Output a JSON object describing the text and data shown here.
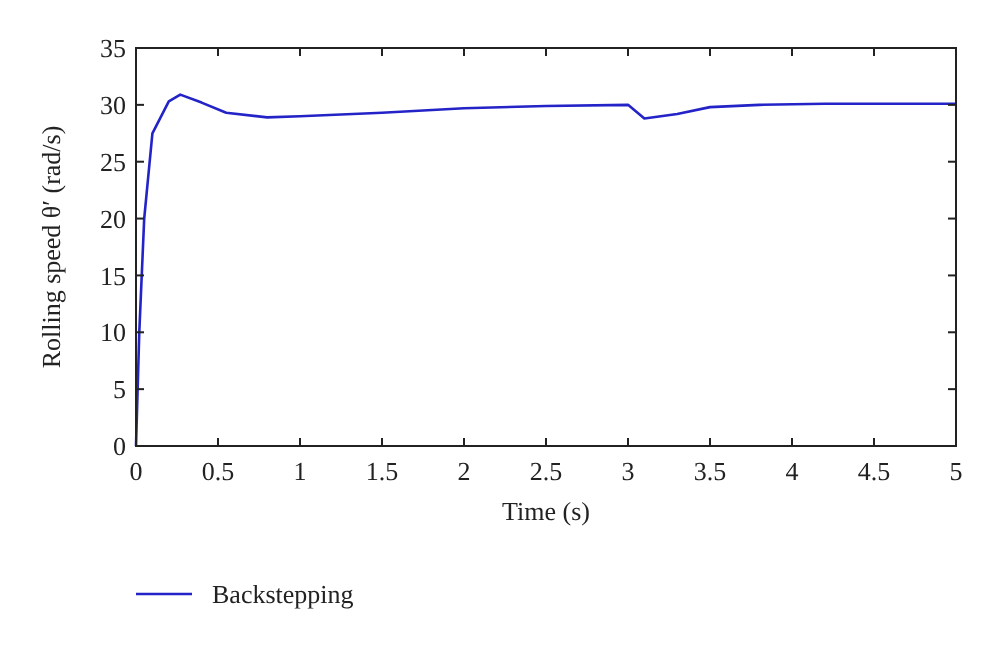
{
  "chart_data": {
    "type": "line",
    "xlabel": "Time (s)",
    "ylabel": "Rolling speed θ′ (rad/s)",
    "xlim": [
      0,
      5
    ],
    "xticks": [
      0,
      0.5,
      1,
      1.5,
      2,
      2.5,
      3,
      3.5,
      4,
      4.5,
      5
    ],
    "ylim": [
      0,
      35
    ],
    "yticks": [
      0,
      5,
      10,
      15,
      20,
      25,
      30,
      35
    ],
    "legend": "bottom",
    "grid": false,
    "line_style": "solid",
    "marker": "none",
    "series": [
      {
        "name": "Backstepping",
        "color": "#2323c8",
        "x": [
          0,
          0.02,
          0.05,
          0.1,
          0.2,
          0.27,
          0.4,
          0.55,
          0.8,
          1,
          1.5,
          2,
          2.5,
          3,
          3.1,
          3.3,
          3.5,
          3.8,
          4.2,
          5
        ],
        "values": [
          0,
          10,
          20,
          27.5,
          30.3,
          30.9,
          30.2,
          29.3,
          28.9,
          29,
          29.3,
          29.7,
          29.9,
          30,
          28.8,
          29.2,
          29.8,
          30,
          30.1,
          30.1
        ]
      }
    ]
  }
}
